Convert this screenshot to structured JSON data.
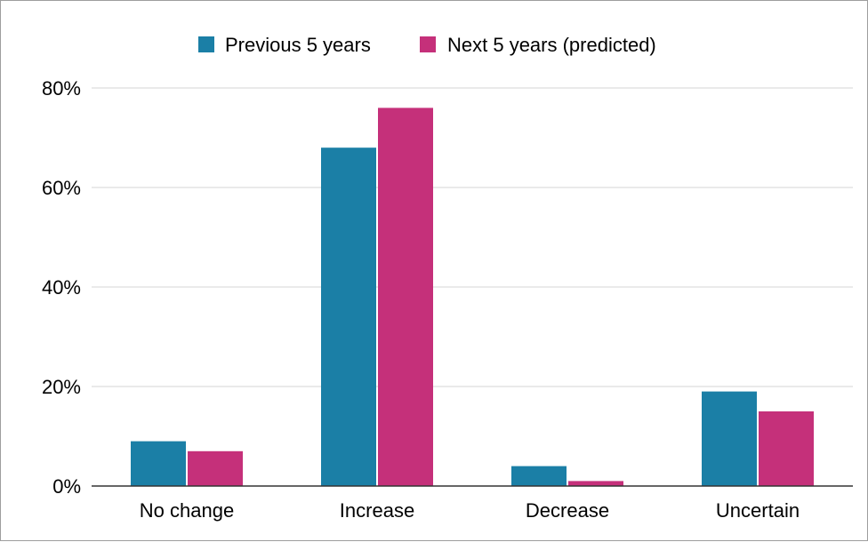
{
  "chart_data": {
    "type": "bar",
    "categories": [
      "No change",
      "Increase",
      "Decrease",
      "Uncertain"
    ],
    "series": [
      {
        "name": "Previous 5 years",
        "values": [
          9,
          68,
          4,
          19
        ],
        "color": "#1b7fa6"
      },
      {
        "name": "Next 5 years (predicted)",
        "values": [
          7,
          76,
          1,
          15
        ],
        "color": "#c5307a"
      }
    ],
    "title": "",
    "xlabel": "",
    "ylabel": "",
    "ylim": [
      0,
      80
    ],
    "yticks": [
      0,
      20,
      40,
      60,
      80
    ],
    "ytick_labels": [
      "0%",
      "20%",
      "40%",
      "60%",
      "80%"
    ],
    "grid": "horizontal",
    "legend": "top-center",
    "colors": {
      "grid": "#d6d6d6",
      "axis": "#333333",
      "border": "#9e9e9e"
    }
  }
}
